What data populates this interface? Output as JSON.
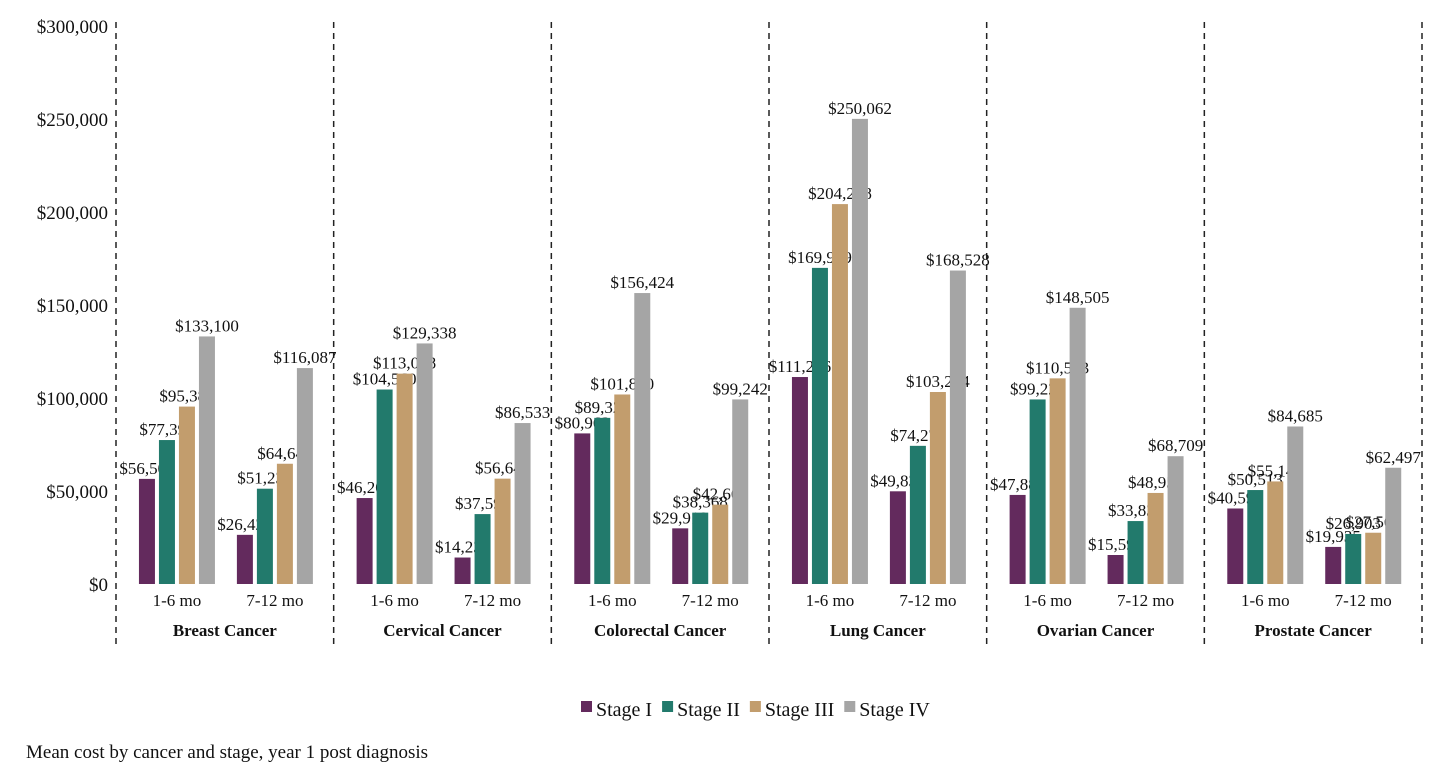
{
  "chart_data": {
    "type": "bar",
    "title": "",
    "xlabel": "",
    "ylabel": "",
    "ylim": [
      0,
      300000
    ],
    "yticks": [
      "$0",
      "$50,000",
      "$100,000",
      "$150,000",
      "$200,000",
      "$250,000",
      "$300,000"
    ],
    "ytick_values": [
      0,
      50000,
      100000,
      150000,
      200000,
      250000,
      300000
    ],
    "grid": false,
    "legend_position": "bottom-center",
    "series_names": [
      "Stage I",
      "Stage II",
      "Stage III",
      "Stage IV"
    ],
    "colors": [
      "#632a5d",
      "#227a6c",
      "#c29d6d",
      "#a5a5a5"
    ],
    "groups": [
      {
        "name": "Breast Cancer",
        "periods": [
          {
            "label": "1-6 mo",
            "values": [
              56507,
              77395,
              95382,
              133100
            ],
            "labels": [
              "$56,507",
              "$77,395",
              "$95,382",
              "$133,100"
            ]
          },
          {
            "label": "7-12 mo",
            "values": [
              26424,
              51235,
              64648,
              116087
            ],
            "labels": [
              "$26,424",
              "$51,235",
              "$64,648",
              "$116,087"
            ]
          }
        ]
      },
      {
        "name": "Cervical Cancer",
        "periods": [
          {
            "label": "1-6 mo",
            "values": [
              46209,
              104560,
              113088,
              129338
            ],
            "labels": [
              "$46,209",
              "$104,560",
              "$113,088",
              "$129,338"
            ]
          },
          {
            "label": "7-12 mo",
            "values": [
              14234,
              37591,
              56642,
              86533
            ],
            "labels": [
              "$14,234",
              "$37,591",
              "$56,642",
              "$86,533"
            ]
          }
        ]
      },
      {
        "name": "Colorectal Cancer",
        "periods": [
          {
            "label": "1-6 mo",
            "values": [
              80963,
              89324,
              101890,
              156424
            ],
            "labels": [
              "$80,963",
              "$89,324",
              "$101,890",
              "$156,424"
            ]
          },
          {
            "label": "7-12 mo",
            "values": [
              29919,
              38368,
              42669,
              99242
            ],
            "labels": [
              "$29,919",
              "$38,368",
              "$42,669",
              "$99,242"
            ]
          }
        ]
      },
      {
        "name": "Lung Cancer",
        "periods": [
          {
            "label": "1-6 mo",
            "values": [
              111276,
              169959,
              204248,
              250062
            ],
            "labels": [
              "$111,276",
              "$169,959",
              "$204,248",
              "$250,062"
            ]
          },
          {
            "label": "7-12 mo",
            "values": [
              49839,
              74275,
              103224,
              168528
            ],
            "labels": [
              "$49,839",
              "$74,275",
              "$103,224",
              "$168,528"
            ]
          }
        ]
      },
      {
        "name": "Ovarian Cancer",
        "periods": [
          {
            "label": "1-6 mo",
            "values": [
              47884,
              99221,
              110563,
              148505
            ],
            "labels": [
              "$47,884",
              "$99,221",
              "$110,563",
              "$148,505"
            ]
          },
          {
            "label": "7-12 mo",
            "values": [
              15590,
              33839,
              48951,
              68709
            ],
            "labels": [
              "$15,590",
              "$33,839",
              "$48,951",
              "$68,709"
            ]
          }
        ]
      },
      {
        "name": "Prostate Cancer",
        "periods": [
          {
            "label": "1-6 mo",
            "values": [
              40595,
              50513,
              55148,
              84685
            ],
            "labels": [
              "$40,595",
              "$50,513",
              "$55,148",
              "$84,685"
            ]
          },
          {
            "label": "7-12 mo",
            "values": [
              19935,
              26903,
              27563,
              62497
            ],
            "labels": [
              "$19,935",
              "$26,903",
              "$27,563",
              "$62,497"
            ]
          }
        ]
      }
    ]
  },
  "caption": "Mean cost by cancer and stage, year 1 post diagnosis"
}
